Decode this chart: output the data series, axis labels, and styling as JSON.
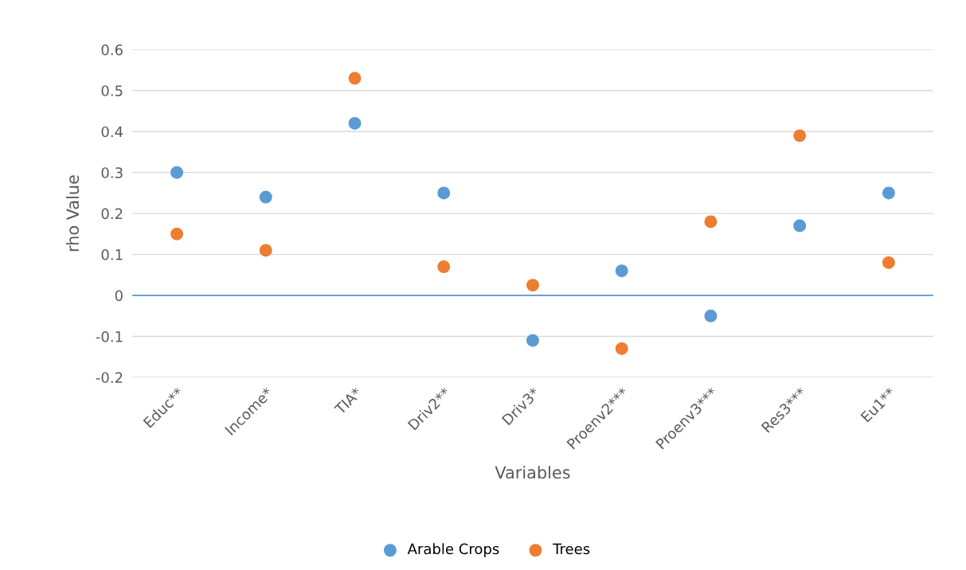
{
  "chart_data": {
    "type": "scatter",
    "xlabel": "Variables",
    "ylabel": "rho Value",
    "categories": [
      "Educ**",
      "Income*",
      "TIA*",
      "Driv2**",
      "Driv3*",
      "Proenv2***",
      "Proenv3***",
      "Res3***",
      "Eu1**"
    ],
    "series": [
      {
        "name": "Arable Crops",
        "color": "#5b9bd5",
        "values": [
          0.3,
          0.24,
          0.42,
          0.25,
          -0.11,
          0.06,
          -0.05,
          0.17,
          0.25
        ]
      },
      {
        "name": "Trees",
        "color": "#ed7d31",
        "values": [
          0.15,
          0.11,
          0.53,
          0.07,
          0.025,
          -0.13,
          0.18,
          0.39,
          0.08
        ]
      }
    ],
    "ylim": [
      -0.2,
      0.6
    ],
    "yticks": [
      -0.2,
      -0.1,
      0,
      0.1,
      0.2,
      0.3,
      0.4,
      0.5,
      0.6
    ],
    "ref_lines": [
      {
        "axis": "y",
        "value": 0,
        "color": "#5b9bd5"
      }
    ],
    "grid": "y",
    "legend": "bottom",
    "marker": "circle"
  }
}
